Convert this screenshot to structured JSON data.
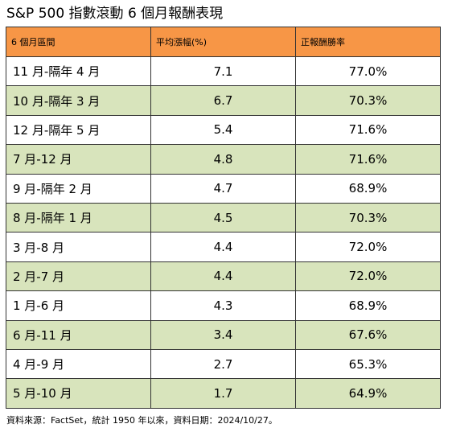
{
  "title": "S&P 500 指數滾動 6 個月報酬表現",
  "headers": [
    "6 個月區間",
    "平均漲幅(%)",
    "正報酬勝率"
  ],
  "rows": [
    {
      "period": "11 月-隔年 4 月",
      "avg": "7.1",
      "win": "77.0%"
    },
    {
      "period": "10 月-隔年 3 月",
      "avg": "6.7",
      "win": "70.3%"
    },
    {
      "period": "12 月-隔年 5 月",
      "avg": "5.4",
      "win": "71.6%"
    },
    {
      "period": "7 月-12 月",
      "avg": "4.8",
      "win": "71.6%"
    },
    {
      "period": "9 月-隔年 2 月",
      "avg": "4.7",
      "win": "68.9%"
    },
    {
      "period": "8 月-隔年 1 月",
      "avg": "4.5",
      "win": "70.3%"
    },
    {
      "period": "3 月-8 月",
      "avg": "4.4",
      "win": "72.0%"
    },
    {
      "period": "2 月-7 月",
      "avg": "4.4",
      "win": "72.0%"
    },
    {
      "period": "1 月-6 月",
      "avg": "4.3",
      "win": "68.9%"
    },
    {
      "period": "6 月-11 月",
      "avg": "3.4",
      "win": "67.6%"
    },
    {
      "period": "4 月-9 月",
      "avg": "2.7",
      "win": "65.3%"
    },
    {
      "period": "5 月-10 月",
      "avg": "1.7",
      "win": "64.9%"
    }
  ],
  "footnote": "資料來源：FactSet，統計 1950 年以來，資料日期：2024/10/27。",
  "colors": {
    "header_bg": "#f79646",
    "alt_row_bg": "#d8e4bc",
    "border": "#333333"
  }
}
